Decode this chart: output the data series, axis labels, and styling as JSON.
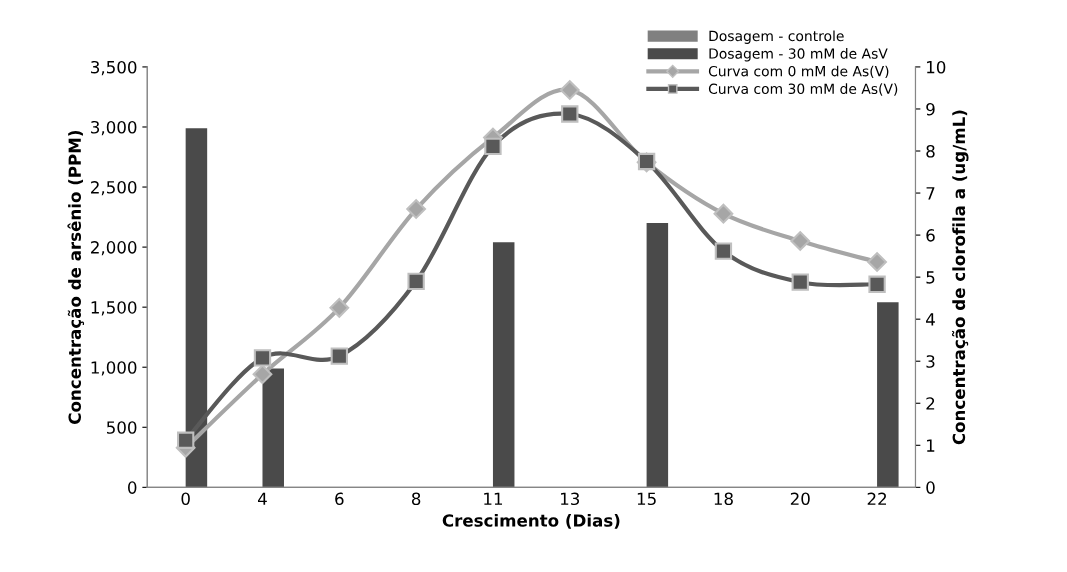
{
  "chart_data": {
    "type": "bar",
    "xlabel": "Crescimento (Dias)",
    "ylabel": "Concentração de arsênio (PPM)",
    "y2label": "Concentração de clorofila a (ug/mL)",
    "categories": [
      "0",
      "4",
      "6",
      "8",
      "11",
      "13",
      "15",
      "18",
      "20",
      "22"
    ],
    "series": [
      {
        "name": "Dosagem - controle",
        "color": "#808080",
        "values": [
          null,
          null,
          null,
          null,
          null,
          null,
          null,
          null,
          null,
          null
        ]
      },
      {
        "name": "Dosagem - 30 mM de AsV",
        "color": "#4a4a4a",
        "values": [
          2990,
          990,
          null,
          null,
          2040,
          null,
          2200,
          null,
          null,
          1540
        ]
      },
      {
        "name": "Curva com 0 mM de As(V)",
        "type": "line",
        "axis": "y2",
        "color": "#a6a6a6",
        "marker": "diamond",
        "values": [
          0.94,
          2.69,
          4.27,
          6.62,
          8.32,
          9.45,
          7.73,
          6.51,
          5.86,
          5.36
        ]
      },
      {
        "name": "Curva com 30 mM de As(V)",
        "type": "line",
        "axis": "y2",
        "color": "#595959",
        "marker": "square",
        "values": [
          1.12,
          3.08,
          3.12,
          4.9,
          8.11,
          8.88,
          7.75,
          5.62,
          4.88,
          4.83
        ]
      }
    ],
    "ylim": [
      0,
      3500
    ],
    "yticks": [
      {
        "value": 0,
        "label": "0"
      },
      {
        "value": 500,
        "label": "500"
      },
      {
        "value": 1000,
        "label": "1,000"
      },
      {
        "value": 1500,
        "label": "1,500"
      },
      {
        "value": 2000,
        "label": "2,000"
      },
      {
        "value": 2500,
        "label": "2,500"
      },
      {
        "value": 3000,
        "label": "3,000"
      },
      {
        "value": 3500,
        "label": "3,500"
      }
    ],
    "y2lim": [
      0,
      10
    ],
    "y2ticks": [
      0,
      1,
      2,
      3,
      4,
      5,
      6,
      7,
      8,
      9,
      10
    ],
    "grid": false,
    "legend": "top right"
  }
}
